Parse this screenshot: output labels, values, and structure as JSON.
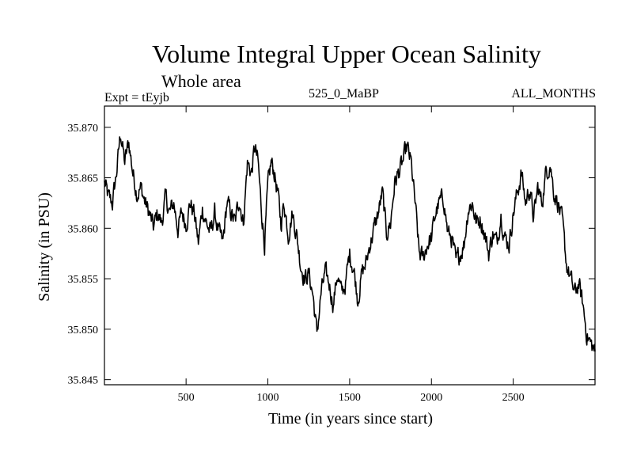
{
  "chart_data": {
    "type": "line",
    "title": "Volume Integral Upper Ocean Salinity",
    "subtitle": "Whole area",
    "experiment": "Expt = tEyjb",
    "model": "525_0_MaBP",
    "period": "ALL_MONTHS",
    "xlabel": "Time (in years since start)",
    "ylabel": "Salinity (in PSU)",
    "xlim": [
      1,
      3000
    ],
    "ylim": [
      35.8445,
      35.8721
    ],
    "xticks": [
      500,
      1000,
      1500,
      2000,
      2500
    ],
    "xtick_labels": [
      "500",
      "1000",
      "1500",
      "2000",
      "2500"
    ],
    "yticks": [
      35.845,
      35.85,
      35.855,
      35.86,
      35.865,
      35.87
    ],
    "ytick_labels": [
      "35.845",
      "35.850",
      "35.855",
      "35.860",
      "35.865",
      "35.870"
    ],
    "grid": false,
    "line_color": "#000000",
    "series": [
      {
        "name": "Salinity",
        "x": [
          1,
          25,
          50,
          75,
          100,
          125,
          150,
          175,
          200,
          225,
          250,
          275,
          300,
          325,
          350,
          375,
          400,
          425,
          450,
          475,
          500,
          525,
          550,
          575,
          600,
          625,
          650,
          675,
          700,
          725,
          750,
          775,
          800,
          825,
          850,
          875,
          900,
          920,
          940,
          960,
          980,
          1000,
          1020,
          1040,
          1060,
          1080,
          1100,
          1125,
          1150,
          1175,
          1200,
          1225,
          1250,
          1275,
          1300,
          1325,
          1350,
          1375,
          1400,
          1425,
          1450,
          1475,
          1500,
          1525,
          1550,
          1575,
          1600,
          1625,
          1650,
          1675,
          1700,
          1725,
          1750,
          1775,
          1800,
          1825,
          1850,
          1875,
          1900,
          1925,
          1950,
          1975,
          2000,
          2025,
          2050,
          2075,
          2100,
          2125,
          2150,
          2175,
          2200,
          2225,
          2250,
          2275,
          2300,
          2325,
          2350,
          2375,
          2400,
          2425,
          2450,
          2475,
          2500,
          2525,
          2550,
          2575,
          2600,
          2625,
          2650,
          2675,
          2700,
          2725,
          2750,
          2775,
          2800,
          2825,
          2850,
          2875,
          2900,
          2925,
          2950,
          2975,
          3000
        ],
        "values": [
          35.8645,
          35.863,
          35.8625,
          35.8655,
          35.8695,
          35.8665,
          35.8685,
          35.8655,
          35.8635,
          35.864,
          35.8625,
          35.8615,
          35.86,
          35.8615,
          35.8605,
          35.863,
          35.8615,
          35.8625,
          35.86,
          35.8615,
          35.8605,
          35.8625,
          35.8615,
          35.8585,
          35.862,
          35.8605,
          35.8595,
          35.8615,
          35.8595,
          35.8585,
          35.8625,
          35.8615,
          35.8605,
          35.863,
          35.8605,
          35.8665,
          35.8655,
          35.868,
          35.8665,
          35.862,
          35.8585,
          35.864,
          35.8665,
          35.8655,
          35.8635,
          35.8605,
          35.8625,
          35.8595,
          35.8615,
          35.8595,
          35.8565,
          35.855,
          35.8555,
          35.8535,
          35.8495,
          35.8535,
          35.8555,
          35.8545,
          35.8525,
          35.8555,
          35.8535,
          35.8545,
          35.8575,
          35.856,
          35.853,
          35.8555,
          35.8565,
          35.8585,
          35.86,
          35.8615,
          35.8635,
          35.8595,
          35.8605,
          35.8645,
          35.8655,
          35.8665,
          35.868,
          35.8665,
          35.8625,
          35.8575,
          35.857,
          35.8585,
          35.859,
          35.8615,
          35.8625,
          35.863,
          35.8595,
          35.859,
          35.8565,
          35.8575,
          35.8585,
          35.862,
          35.8625,
          35.8605,
          35.861,
          35.8595,
          35.8575,
          35.8595,
          35.8585,
          35.8615,
          35.859,
          35.8585,
          35.8615,
          35.8635,
          35.8655,
          35.8625,
          35.864,
          35.861,
          35.864,
          35.8625,
          35.8655,
          35.8665,
          35.8635,
          35.8625,
          35.8605,
          35.8565,
          35.855,
          35.8535,
          35.8545,
          35.8525,
          35.8495,
          35.8485,
          35.8478
        ]
      }
    ]
  }
}
